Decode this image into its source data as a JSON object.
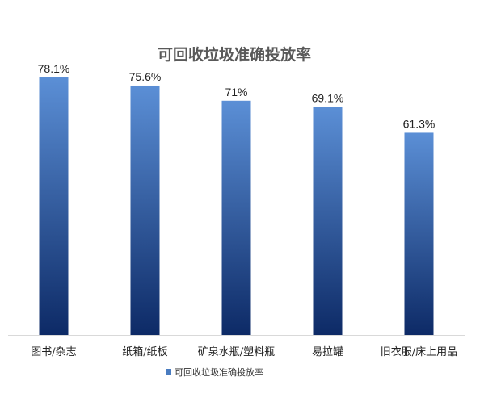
{
  "chart_data": {
    "type": "bar",
    "title": "可回收垃圾准确投放率",
    "categories": [
      "图书/杂志",
      "纸箱/纸板",
      "矿泉水瓶/塑料瓶",
      "易拉罐",
      "旧衣服/床上用品"
    ],
    "series": [
      {
        "name": "可回收垃圾准确投放率",
        "values": [
          78.1,
          75.6,
          71,
          69.1,
          61.3
        ],
        "data_labels": [
          "78.1%",
          "75.6%",
          "71%",
          "69.1%",
          "61.3%"
        ]
      }
    ],
    "ylim": [
      0,
      80
    ],
    "grid": false,
    "legend_position": "bottom",
    "colors": {
      "bar_top": "#5b8fd6",
      "bar_bottom": "#0d2a66",
      "legend_swatch": "#4a7cc0",
      "axis_line": "#d9d9d9"
    }
  }
}
